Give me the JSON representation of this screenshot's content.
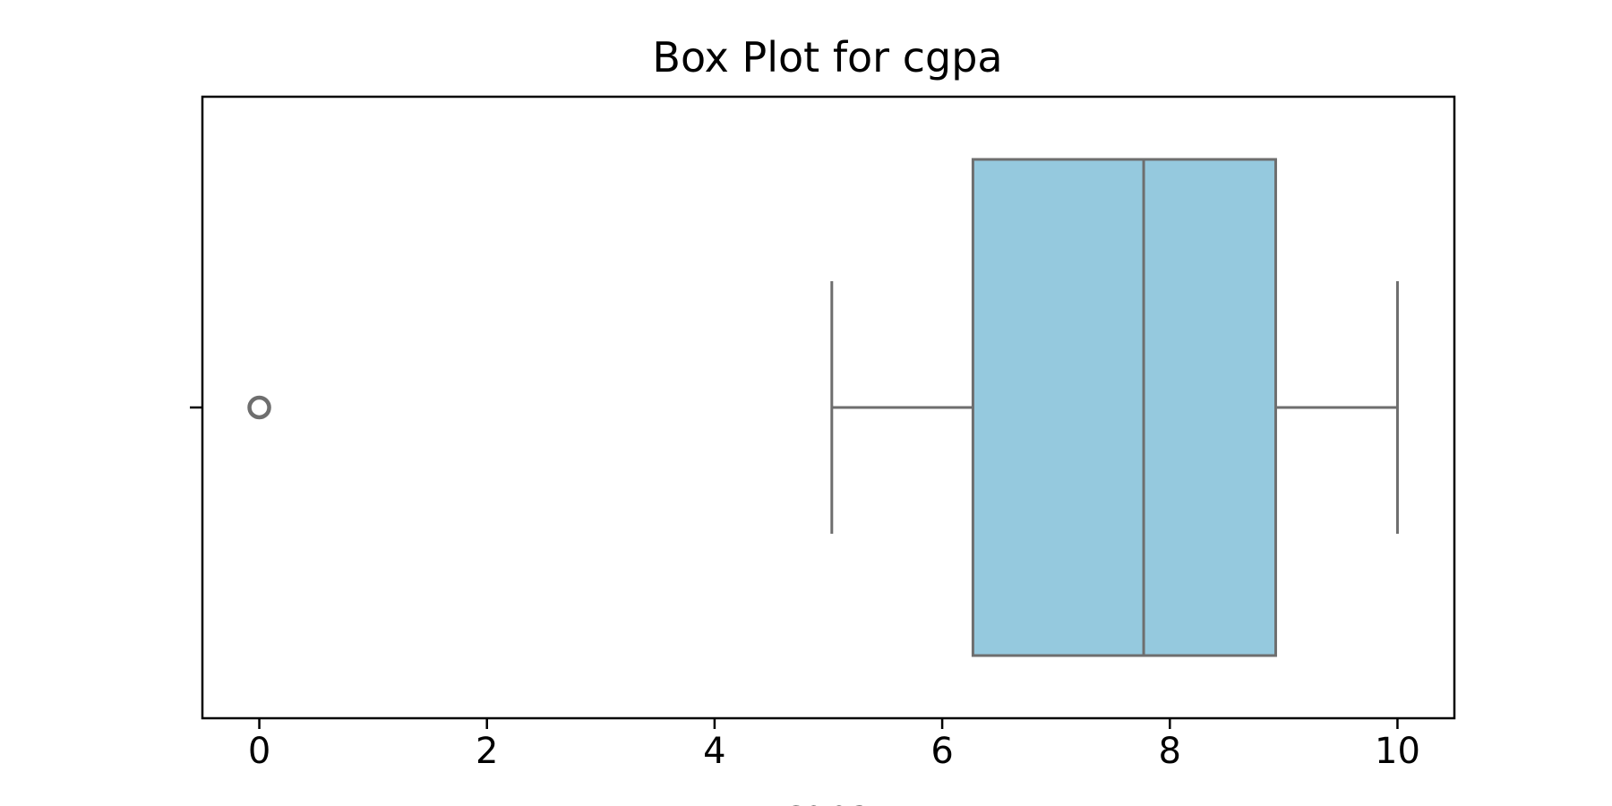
{
  "chart_data": {
    "type": "box",
    "title": "Box Plot for cgpa",
    "xlabel": "cgpa",
    "ylabel": "",
    "xlim": [
      -0.5,
      10.5
    ],
    "xticks": [
      0,
      2,
      4,
      6,
      8,
      10
    ],
    "xtick_labels": [
      "0",
      "2",
      "4",
      "6",
      "8",
      "10"
    ],
    "grid": false,
    "box": {
      "whisker_low": 5.03,
      "q1": 6.27,
      "median": 7.77,
      "q3": 8.93,
      "whisker_high": 10.0,
      "outliers": [
        0.0
      ]
    },
    "colors": {
      "box_fill": "#95c9de",
      "line": "#6e6e6e",
      "axis": "#000000"
    }
  }
}
